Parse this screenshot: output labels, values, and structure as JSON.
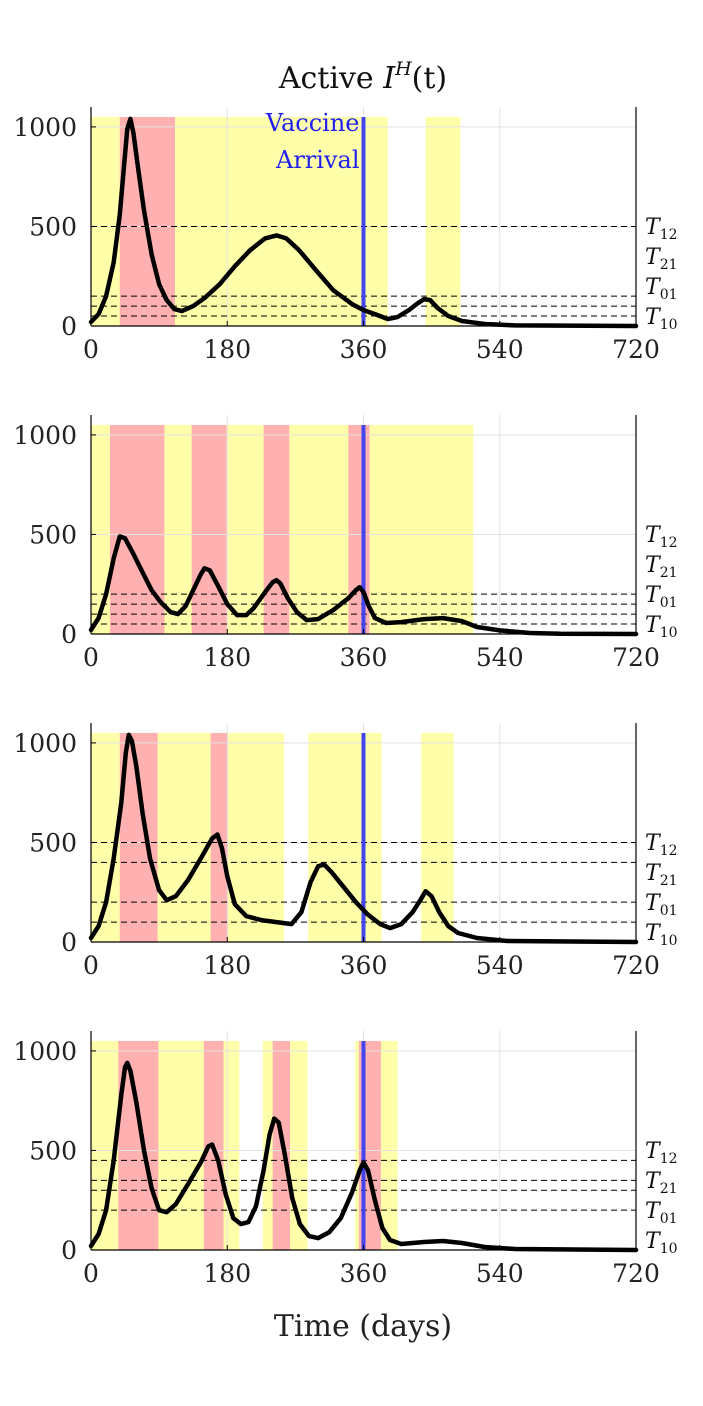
{
  "figure": {
    "title_main": "Active ",
    "title_var": "I",
    "title_sup": "H",
    "title_arg": "(t)",
    "xlabel": "Time (days)"
  },
  "colors": {
    "red_band": "#ffb0b0",
    "yellow_band": "#ffffaa",
    "curve": "#000000",
    "vaccine_line": "#4545ee",
    "grid": "#e2e2e2"
  },
  "chart_data": [
    {
      "type": "line",
      "xlim": [
        0,
        720
      ],
      "ylim": [
        0,
        1100
      ],
      "xticks": [
        0,
        180,
        360,
        540,
        720
      ],
      "yticks": [
        0,
        500,
        1000
      ],
      "grid": true,
      "thresholds": {
        "T12": 500,
        "T21": 150,
        "T01": 100,
        "T10": 50
      },
      "threshold_labels": [
        {
          "base": "T",
          "sub": "12"
        },
        {
          "base": "T",
          "sub": "21"
        },
        {
          "base": "T",
          "sub": "01"
        },
        {
          "base": "T",
          "sub": "10"
        }
      ],
      "vaccine_day": 360,
      "vaccine_annotation": [
        "Vaccine",
        "Arrival"
      ],
      "yellow_regions": [
        [
          0,
          392
        ],
        [
          442,
          488
        ]
      ],
      "red_regions": [
        [
          38,
          111
        ]
      ],
      "series": [
        {
          "points": [
            [
              0,
              20
            ],
            [
              10,
              60
            ],
            [
              20,
              150
            ],
            [
              30,
              320
            ],
            [
              38,
              560
            ],
            [
              44,
              820
            ],
            [
              48,
              990
            ],
            [
              52,
              1040
            ],
            [
              56,
              970
            ],
            [
              62,
              800
            ],
            [
              70,
              580
            ],
            [
              80,
              360
            ],
            [
              90,
              210
            ],
            [
              100,
              130
            ],
            [
              110,
              85
            ],
            [
              120,
              75
            ],
            [
              135,
              100
            ],
            [
              150,
              140
            ],
            [
              170,
              210
            ],
            [
              190,
              300
            ],
            [
              210,
              380
            ],
            [
              230,
              440
            ],
            [
              245,
              455
            ],
            [
              258,
              440
            ],
            [
              275,
              380
            ],
            [
              295,
              290
            ],
            [
              320,
              180
            ],
            [
              345,
              110
            ],
            [
              360,
              80
            ],
            [
              375,
              60
            ],
            [
              392,
              35
            ],
            [
              405,
              45
            ],
            [
              420,
              80
            ],
            [
              430,
              110
            ],
            [
              440,
              135
            ],
            [
              448,
              130
            ],
            [
              458,
              90
            ],
            [
              472,
              50
            ],
            [
              490,
              25
            ],
            [
              520,
              10
            ],
            [
              560,
              3
            ],
            [
              720,
              0
            ]
          ]
        }
      ]
    },
    {
      "type": "line",
      "xlim": [
        0,
        720
      ],
      "ylim": [
        0,
        1100
      ],
      "xticks": [
        0,
        180,
        360,
        540,
        720
      ],
      "yticks": [
        0,
        500,
        1000
      ],
      "grid": true,
      "thresholds": {
        "T12": 200,
        "T21": 150,
        "T01": 100,
        "T10": 50
      },
      "threshold_labels": [
        {
          "base": "T",
          "sub": "12"
        },
        {
          "base": "T",
          "sub": "21"
        },
        {
          "base": "T",
          "sub": "01"
        },
        {
          "base": "T",
          "sub": "10"
        }
      ],
      "vaccine_day": 360,
      "vaccine_annotation": [],
      "yellow_regions": [
        [
          0,
          505
        ]
      ],
      "red_regions": [
        [
          25,
          97
        ],
        [
          133,
          179
        ],
        [
          228,
          262
        ],
        [
          340,
          368
        ]
      ],
      "series": [
        {
          "points": [
            [
              0,
              20
            ],
            [
              10,
              80
            ],
            [
              20,
              200
            ],
            [
              30,
              380
            ],
            [
              38,
              490
            ],
            [
              45,
              480
            ],
            [
              55,
              410
            ],
            [
              68,
              310
            ],
            [
              80,
              220
            ],
            [
              92,
              160
            ],
            [
              105,
              110
            ],
            [
              115,
              100
            ],
            [
              125,
              140
            ],
            [
              135,
              220
            ],
            [
              145,
              300
            ],
            [
              150,
              330
            ],
            [
              157,
              320
            ],
            [
              168,
              240
            ],
            [
              180,
              150
            ],
            [
              193,
              95
            ],
            [
              205,
              95
            ],
            [
              215,
              130
            ],
            [
              230,
              210
            ],
            [
              240,
              260
            ],
            [
              245,
              270
            ],
            [
              250,
              255
            ],
            [
              260,
              180
            ],
            [
              272,
              110
            ],
            [
              285,
              70
            ],
            [
              300,
              75
            ],
            [
              320,
              120
            ],
            [
              340,
              180
            ],
            [
              350,
              220
            ],
            [
              355,
              235
            ],
            [
              360,
              210
            ],
            [
              367,
              140
            ],
            [
              375,
              80
            ],
            [
              390,
              55
            ],
            [
              410,
              60
            ],
            [
              440,
              75
            ],
            [
              465,
              80
            ],
            [
              490,
              65
            ],
            [
              510,
              35
            ],
            [
              540,
              18
            ],
            [
              580,
              5
            ],
            [
              620,
              1
            ],
            [
              720,
              0
            ]
          ]
        }
      ]
    },
    {
      "type": "line",
      "xlim": [
        0,
        720
      ],
      "ylim": [
        0,
        1100
      ],
      "xticks": [
        0,
        180,
        360,
        540,
        720
      ],
      "yticks": [
        0,
        500,
        1000
      ],
      "grid": true,
      "thresholds": {
        "T12": 500,
        "T21": 400,
        "T01": 200,
        "T10": 100
      },
      "threshold_labels": [
        {
          "base": "T",
          "sub": "12"
        },
        {
          "base": "T",
          "sub": "21"
        },
        {
          "base": "T",
          "sub": "01"
        },
        {
          "base": "T",
          "sub": "10"
        }
      ],
      "vaccine_day": 360,
      "vaccine_annotation": [],
      "yellow_regions": [
        [
          0,
          255
        ],
        [
          287,
          384
        ],
        [
          436,
          479
        ]
      ],
      "red_regions": [
        [
          38,
          88
        ],
        [
          158,
          181
        ]
      ],
      "series": [
        {
          "points": [
            [
              0,
              20
            ],
            [
              10,
              80
            ],
            [
              20,
              200
            ],
            [
              30,
              420
            ],
            [
              40,
              700
            ],
            [
              46,
              950
            ],
            [
              50,
              1040
            ],
            [
              54,
              1010
            ],
            [
              60,
              880
            ],
            [
              68,
              650
            ],
            [
              78,
              420
            ],
            [
              90,
              260
            ],
            [
              100,
              210
            ],
            [
              112,
              230
            ],
            [
              128,
              310
            ],
            [
              145,
              420
            ],
            [
              160,
              520
            ],
            [
              167,
              540
            ],
            [
              173,
              470
            ],
            [
              180,
              330
            ],
            [
              190,
              190
            ],
            [
              205,
              130
            ],
            [
              225,
              110
            ],
            [
              245,
              100
            ],
            [
              265,
              90
            ],
            [
              278,
              150
            ],
            [
              290,
              300
            ],
            [
              300,
              380
            ],
            [
              308,
              390
            ],
            [
              318,
              350
            ],
            [
              335,
              270
            ],
            [
              350,
              200
            ],
            [
              365,
              140
            ],
            [
              382,
              90
            ],
            [
              395,
              70
            ],
            [
              410,
              90
            ],
            [
              425,
              150
            ],
            [
              435,
              210
            ],
            [
              442,
              255
            ],
            [
              450,
              230
            ],
            [
              460,
              150
            ],
            [
              472,
              80
            ],
            [
              485,
              45
            ],
            [
              510,
              20
            ],
            [
              550,
              5
            ],
            [
              720,
              0
            ]
          ]
        }
      ]
    },
    {
      "type": "line",
      "xlim": [
        0,
        720
      ],
      "ylim": [
        0,
        1100
      ],
      "xticks": [
        0,
        180,
        360,
        540,
        720
      ],
      "yticks": [
        0,
        500,
        1000
      ],
      "grid": true,
      "thresholds": {
        "T12": 450,
        "T21": 350,
        "T01": 300,
        "T10": 200
      },
      "threshold_labels": [
        {
          "base": "T",
          "sub": "12"
        },
        {
          "base": "T",
          "sub": "21"
        },
        {
          "base": "T",
          "sub": "01"
        },
        {
          "base": "T",
          "sub": "10"
        }
      ],
      "vaccine_day": 360,
      "vaccine_annotation": [],
      "yellow_regions": [
        [
          0,
          196
        ],
        [
          227,
          286
        ],
        [
          349,
          405
        ]
      ],
      "red_regions": [
        [
          36,
          89
        ],
        [
          149,
          175
        ],
        [
          240,
          263
        ],
        [
          354,
          383
        ]
      ],
      "series": [
        {
          "points": [
            [
              0,
              20
            ],
            [
              10,
              80
            ],
            [
              20,
              200
            ],
            [
              30,
              450
            ],
            [
              40,
              780
            ],
            [
              45,
              920
            ],
            [
              48,
              940
            ],
            [
              52,
              900
            ],
            [
              60,
              740
            ],
            [
              70,
              500
            ],
            [
              80,
              310
            ],
            [
              90,
              200
            ],
            [
              100,
              190
            ],
            [
              112,
              230
            ],
            [
              128,
              330
            ],
            [
              145,
              440
            ],
            [
              155,
              520
            ],
            [
              160,
              530
            ],
            [
              168,
              450
            ],
            [
              178,
              280
            ],
            [
              188,
              160
            ],
            [
              198,
              130
            ],
            [
              208,
              140
            ],
            [
              218,
              220
            ],
            [
              228,
              400
            ],
            [
              236,
              580
            ],
            [
              242,
              660
            ],
            [
              248,
              640
            ],
            [
              256,
              480
            ],
            [
              266,
              260
            ],
            [
              276,
              130
            ],
            [
              288,
              70
            ],
            [
              300,
              60
            ],
            [
              315,
              90
            ],
            [
              330,
              160
            ],
            [
              345,
              290
            ],
            [
              355,
              400
            ],
            [
              360,
              440
            ],
            [
              366,
              400
            ],
            [
              375,
              250
            ],
            [
              385,
              110
            ],
            [
              395,
              50
            ],
            [
              410,
              30
            ],
            [
              440,
              40
            ],
            [
              465,
              45
            ],
            [
              490,
              35
            ],
            [
              520,
              15
            ],
            [
              560,
              5
            ],
            [
              720,
              0
            ]
          ]
        }
      ]
    }
  ]
}
